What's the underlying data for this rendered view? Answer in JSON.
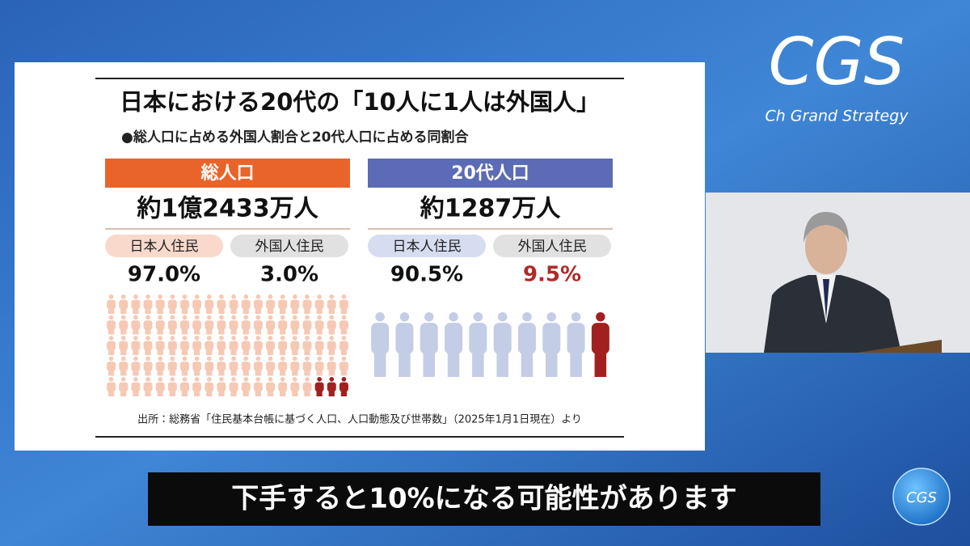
{
  "logo": {
    "title": "CGS",
    "subtitle": "Ch Grand Strategy"
  },
  "slide": {
    "title": "日本における20代の「10人に1人は外国人」",
    "subtitle": "●総人口に占める外国人割合と20代人口に占める同割合",
    "panels": [
      {
        "header": "総人口",
        "total": "約1億2433万人",
        "groups": [
          {
            "label": "日本人住民",
            "share": "97.0%"
          },
          {
            "label": "外国人住民",
            "share": "3.0%"
          }
        ]
      },
      {
        "header": "20代人口",
        "total": "約1287万人",
        "groups": [
          {
            "label": "日本人住民",
            "share": "90.5%"
          },
          {
            "label": "外国人住民",
            "share": "9.5%"
          }
        ]
      }
    ],
    "source": "出所：総務省「住民基本台帳に基づく人口、人口動態及び世帯数」（2025年1月1日現在）より"
  },
  "caption": "下手すると10%になる可能性があります",
  "badge": "CGS"
}
